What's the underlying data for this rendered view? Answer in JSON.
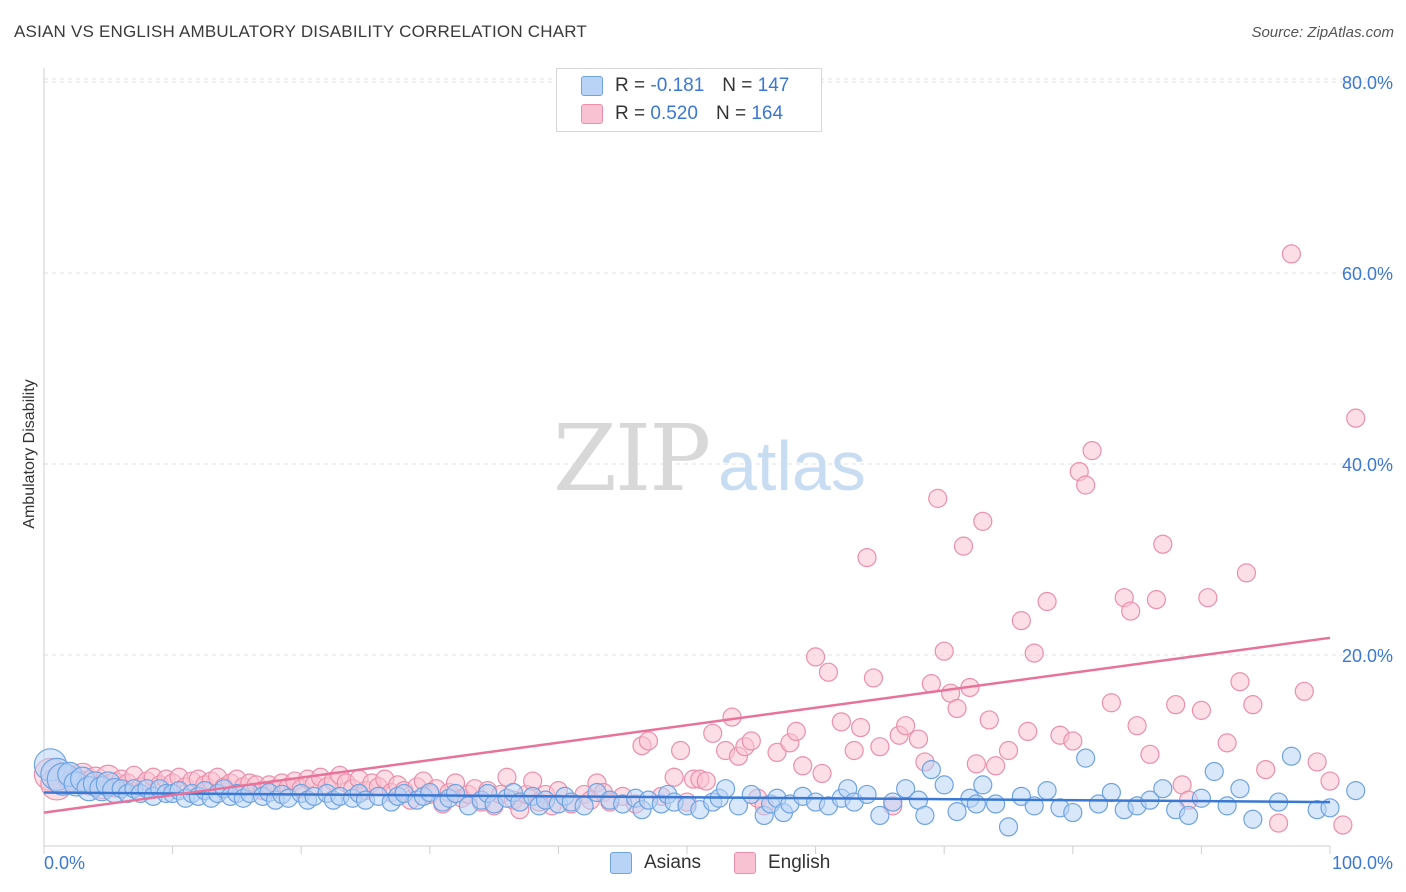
{
  "title": "ASIAN VS ENGLISH AMBULATORY DISABILITY CORRELATION CHART",
  "source": "Source: ZipAtlas.com",
  "watermark": {
    "zip": "ZIP",
    "atlas": "atlas"
  },
  "legend": {
    "asians": {
      "r_label": "R =",
      "r_value": "-0.181",
      "n_label": "N =",
      "n_value": "147"
    },
    "english": {
      "r_label": "R =",
      "r_value": "0.520",
      "n_label": "N =",
      "n_value": "164"
    }
  },
  "bottom_legend": {
    "asians": "Asians",
    "english": "English"
  },
  "colors": {
    "asians_fill": "#b8d3f5",
    "asians_stroke": "#6fa3e0",
    "asians_line": "#3a78d4",
    "english_fill": "#f9c2d2",
    "english_stroke": "#eb8fac",
    "english_line": "#e8729a",
    "tick_label": "#3b78d4",
    "grid": "#e2e2e2"
  },
  "chart_data": {
    "type": "scatter",
    "title": "ASIAN VS ENGLISH AMBULATORY DISABILITY CORRELATION CHART",
    "xlabel": "",
    "ylabel": "Ambulatory Disability",
    "xlim": [
      0,
      100
    ],
    "ylim": [
      0,
      82
    ],
    "x_tick_labels": [
      "0.0%",
      "100.0%"
    ],
    "y_ticks": [
      20,
      40,
      60,
      80
    ],
    "y_tick_labels": [
      "20.0%",
      "40.0%",
      "60.0%",
      "80.0%"
    ],
    "grid": true,
    "legend_position": "top-center",
    "series": [
      {
        "name": "Asians",
        "R": -0.181,
        "N": 147,
        "trend": {
          "x": [
            0,
            100
          ],
          "y": [
            5.6,
            4.6
          ]
        },
        "points": [
          [
            0.5,
            8.5
          ],
          [
            1,
            7.5
          ],
          [
            1.5,
            7
          ],
          [
            2,
            7.5
          ],
          [
            2.5,
            6.5
          ],
          [
            3,
            7
          ],
          [
            3.5,
            6
          ],
          [
            4,
            6.5
          ],
          [
            4.5,
            6
          ],
          [
            5,
            6.5
          ],
          [
            5.5,
            5.8
          ],
          [
            6,
            6
          ],
          [
            6.5,
            5.5
          ],
          [
            7,
            6
          ],
          [
            7.5,
            5.5
          ],
          [
            8,
            6
          ],
          [
            8.5,
            5.2
          ],
          [
            9,
            6
          ],
          [
            9.5,
            5.5
          ],
          [
            10,
            5.5
          ],
          [
            10.5,
            5.8
          ],
          [
            11,
            5
          ],
          [
            11.5,
            5.5
          ],
          [
            12,
            5.2
          ],
          [
            12.5,
            5.8
          ],
          [
            13,
            5
          ],
          [
            13.5,
            5.5
          ],
          [
            14,
            6
          ],
          [
            14.5,
            5.2
          ],
          [
            15,
            5.5
          ],
          [
            15.5,
            5
          ],
          [
            16,
            5.5
          ],
          [
            17,
            5.2
          ],
          [
            17.5,
            5.6
          ],
          [
            18,
            4.8
          ],
          [
            18.5,
            5.4
          ],
          [
            19,
            5
          ],
          [
            20,
            5.5
          ],
          [
            20.5,
            4.8
          ],
          [
            21,
            5.2
          ],
          [
            22,
            5.5
          ],
          [
            22.5,
            4.8
          ],
          [
            23,
            5.2
          ],
          [
            24,
            5
          ],
          [
            24.5,
            5.5
          ],
          [
            25,
            4.8
          ],
          [
            26,
            5.2
          ],
          [
            27,
            4.6
          ],
          [
            27.5,
            5.2
          ],
          [
            28,
            5.5
          ],
          [
            29,
            4.8
          ],
          [
            29.5,
            5.2
          ],
          [
            30,
            5.6
          ],
          [
            31,
            4.6
          ],
          [
            31.5,
            5
          ],
          [
            32,
            5.5
          ],
          [
            33,
            4.2
          ],
          [
            34,
            4.8
          ],
          [
            34.5,
            5.5
          ],
          [
            35,
            4.4
          ],
          [
            36,
            5
          ],
          [
            36.5,
            5.6
          ],
          [
            37,
            4.6
          ],
          [
            38,
            5.2
          ],
          [
            38.5,
            4.2
          ],
          [
            39,
            4.8
          ],
          [
            40,
            4.4
          ],
          [
            40.5,
            5.2
          ],
          [
            41,
            4.6
          ],
          [
            42,
            4.2
          ],
          [
            43,
            5.6
          ],
          [
            44,
            4.8
          ],
          [
            45,
            4.4
          ],
          [
            46,
            5
          ],
          [
            46.5,
            3.8
          ],
          [
            47,
            4.8
          ],
          [
            48,
            4.4
          ],
          [
            48.5,
            5.4
          ],
          [
            49,
            4.6
          ],
          [
            50,
            4.2
          ],
          [
            51,
            3.8
          ],
          [
            52,
            4.6
          ],
          [
            52.5,
            5
          ],
          [
            53,
            6
          ],
          [
            54,
            4.2
          ],
          [
            55,
            5.4
          ],
          [
            56,
            3.2
          ],
          [
            56.5,
            4.4
          ],
          [
            57,
            5
          ],
          [
            57.5,
            3.5
          ],
          [
            58,
            4.4
          ],
          [
            59,
            5.2
          ],
          [
            60,
            4.6
          ],
          [
            61,
            4.2
          ],
          [
            62,
            5
          ],
          [
            62.5,
            6
          ],
          [
            63,
            4.6
          ],
          [
            64,
            5.4
          ],
          [
            65,
            3.2
          ],
          [
            66,
            4.6
          ],
          [
            67,
            6
          ],
          [
            68,
            4.8
          ],
          [
            68.5,
            3.2
          ],
          [
            69,
            8
          ],
          [
            70,
            6.4
          ],
          [
            71,
            3.6
          ],
          [
            72,
            5
          ],
          [
            72.5,
            4.4
          ],
          [
            73,
            6.4
          ],
          [
            74,
            4.4
          ],
          [
            75,
            2
          ],
          [
            76,
            5.2
          ],
          [
            77,
            4.2
          ],
          [
            78,
            5.8
          ],
          [
            79,
            4
          ],
          [
            80,
            3.5
          ],
          [
            81,
            9.2
          ],
          [
            82,
            4.4
          ],
          [
            83,
            5.6
          ],
          [
            84,
            3.8
          ],
          [
            85,
            4.2
          ],
          [
            86,
            4.8
          ],
          [
            87,
            6
          ],
          [
            88,
            3.8
          ],
          [
            89,
            3.2
          ],
          [
            90,
            5
          ],
          [
            91,
            7.8
          ],
          [
            92,
            4.2
          ],
          [
            93,
            6
          ],
          [
            94,
            2.8
          ],
          [
            96,
            4.6
          ],
          [
            97,
            9.4
          ],
          [
            99,
            3.8
          ],
          [
            100,
            4
          ],
          [
            102,
            5.8
          ]
        ]
      },
      {
        "name": "English",
        "R": 0.52,
        "N": 164,
        "trend": {
          "x": [
            0,
            100
          ],
          "y": [
            3.5,
            21.8
          ]
        },
        "points": [
          [
            0.5,
            7.5
          ],
          [
            1,
            6.5
          ],
          [
            1.5,
            7
          ],
          [
            2,
            7.2
          ],
          [
            2.5,
            6.8
          ],
          [
            3,
            7.4
          ],
          [
            3.5,
            6.6
          ],
          [
            4,
            7
          ],
          [
            4.5,
            6.2
          ],
          [
            5,
            7.2
          ],
          [
            5.5,
            6.4
          ],
          [
            6,
            7
          ],
          [
            6.5,
            6.6
          ],
          [
            7,
            7.4
          ],
          [
            7.5,
            6.2
          ],
          [
            8,
            6.8
          ],
          [
            8.5,
            7.2
          ],
          [
            9,
            6.4
          ],
          [
            9.5,
            7
          ],
          [
            10,
            6.6
          ],
          [
            10.5,
            7.2
          ],
          [
            11,
            6.2
          ],
          [
            11.5,
            6.8
          ],
          [
            12,
            7
          ],
          [
            12.5,
            6.4
          ],
          [
            13,
            6.8
          ],
          [
            13.5,
            7.2
          ],
          [
            14,
            6.2
          ],
          [
            14.5,
            6.6
          ],
          [
            15,
            7
          ],
          [
            15.5,
            6.2
          ],
          [
            16,
            6.6
          ],
          [
            16.5,
            6.4
          ],
          [
            17,
            5.8
          ],
          [
            17.5,
            6.4
          ],
          [
            18,
            6
          ],
          [
            18.5,
            6.6
          ],
          [
            19,
            6.2
          ],
          [
            19.5,
            6.8
          ],
          [
            20,
            6
          ],
          [
            20.5,
            7
          ],
          [
            21,
            6.4
          ],
          [
            21.5,
            7.2
          ],
          [
            22,
            6.2
          ],
          [
            22.5,
            6.8
          ],
          [
            23,
            7.4
          ],
          [
            23.5,
            6.6
          ],
          [
            24,
            6
          ],
          [
            24.5,
            7
          ],
          [
            25,
            5.8
          ],
          [
            25.5,
            6.6
          ],
          [
            26,
            6.2
          ],
          [
            26.5,
            7
          ],
          [
            27,
            5.6
          ],
          [
            27.5,
            6.4
          ],
          [
            28,
            5.8
          ],
          [
            28.5,
            4.8
          ],
          [
            29,
            6.2
          ],
          [
            29.5,
            6.8
          ],
          [
            30,
            5.4
          ],
          [
            30.5,
            6
          ],
          [
            31,
            4.4
          ],
          [
            31.5,
            5.6
          ],
          [
            32,
            6.6
          ],
          [
            32.5,
            5
          ],
          [
            33,
            5.4
          ],
          [
            33.5,
            6
          ],
          [
            34,
            4.6
          ],
          [
            34.5,
            5.8
          ],
          [
            35,
            4.2
          ],
          [
            35.5,
            5.4
          ],
          [
            36,
            7.2
          ],
          [
            36.5,
            4.8
          ],
          [
            37,
            3.8
          ],
          [
            37.5,
            5.4
          ],
          [
            38,
            6.8
          ],
          [
            38.5,
            4.6
          ],
          [
            39,
            5.4
          ],
          [
            39.5,
            4.2
          ],
          [
            40,
            5.8
          ],
          [
            41,
            4.4
          ],
          [
            42,
            5.4
          ],
          [
            42.5,
            4.8
          ],
          [
            43,
            6.6
          ],
          [
            43.5,
            5.6
          ],
          [
            44,
            4.6
          ],
          [
            45,
            5.2
          ],
          [
            46,
            4.4
          ],
          [
            46.5,
            10.5
          ],
          [
            47,
            11
          ],
          [
            48,
            5.2
          ],
          [
            49,
            7.2
          ],
          [
            49.5,
            10
          ],
          [
            50,
            4.6
          ],
          [
            50.5,
            7
          ],
          [
            51,
            7
          ],
          [
            51.5,
            6.8
          ],
          [
            52,
            11.8
          ],
          [
            53,
            10
          ],
          [
            53.5,
            13.5
          ],
          [
            54,
            9.4
          ],
          [
            54.5,
            10.4
          ],
          [
            55,
            11
          ],
          [
            55.5,
            5
          ],
          [
            56,
            4.2
          ],
          [
            57,
            9.8
          ],
          [
            58,
            10.8
          ],
          [
            58.5,
            12
          ],
          [
            59,
            8.4
          ],
          [
            60,
            19.8
          ],
          [
            60.5,
            7.6
          ],
          [
            61,
            18.2
          ],
          [
            62,
            13
          ],
          [
            63,
            10
          ],
          [
            63.5,
            12.4
          ],
          [
            64,
            30.2
          ],
          [
            64.5,
            17.6
          ],
          [
            65,
            10.4
          ],
          [
            66,
            4.2
          ],
          [
            66.5,
            11.6
          ],
          [
            67,
            12.6
          ],
          [
            68,
            11.2
          ],
          [
            68.5,
            8.8
          ],
          [
            69,
            17
          ],
          [
            69.5,
            36.4
          ],
          [
            70,
            20.4
          ],
          [
            70.5,
            16
          ],
          [
            71,
            14.4
          ],
          [
            71.5,
            31.4
          ],
          [
            72,
            16.6
          ],
          [
            72.5,
            8.6
          ],
          [
            73,
            34
          ],
          [
            73.5,
            13.2
          ],
          [
            74,
            8.4
          ],
          [
            75,
            10
          ],
          [
            76,
            23.6
          ],
          [
            76.5,
            12
          ],
          [
            77,
            20.2
          ],
          [
            78,
            25.6
          ],
          [
            79,
            11.6
          ],
          [
            80,
            11
          ],
          [
            80.5,
            39.2
          ],
          [
            81,
            37.8
          ],
          [
            81.5,
            41.4
          ],
          [
            83,
            15
          ],
          [
            84,
            26
          ],
          [
            84.5,
            24.6
          ],
          [
            85,
            12.6
          ],
          [
            86,
            9.6
          ],
          [
            86.5,
            25.8
          ],
          [
            87,
            31.6
          ],
          [
            88,
            14.8
          ],
          [
            88.5,
            6.4
          ],
          [
            89,
            4.8
          ],
          [
            90,
            14.2
          ],
          [
            90.5,
            26
          ],
          [
            92,
            10.8
          ],
          [
            93,
            17.2
          ],
          [
            93.5,
            28.6
          ],
          [
            94,
            14.8
          ],
          [
            95,
            8
          ],
          [
            96,
            2.4
          ],
          [
            97,
            62
          ],
          [
            98,
            16.2
          ],
          [
            99,
            8.8
          ],
          [
            100,
            6.8
          ],
          [
            101,
            2.2
          ],
          [
            102,
            44.8
          ]
        ]
      }
    ]
  }
}
